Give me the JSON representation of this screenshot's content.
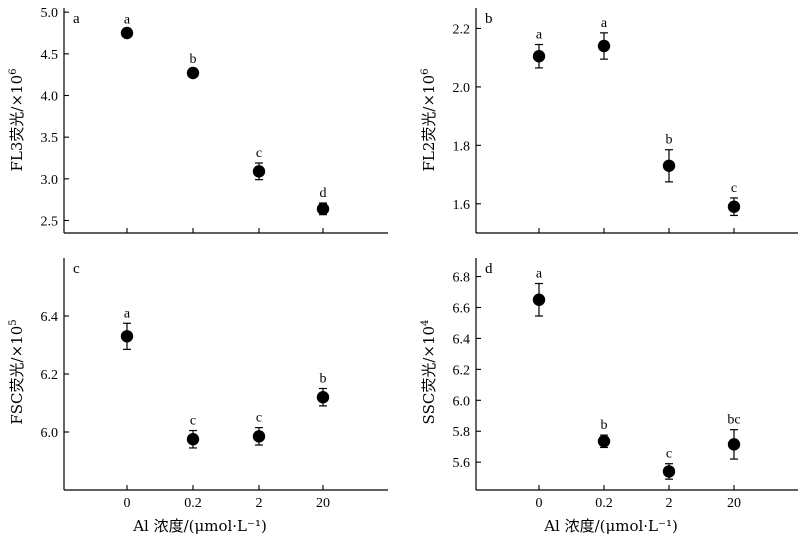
{
  "chart_data": [
    {
      "id": "a",
      "type": "scatter",
      "panel_label": "a",
      "ylabel_base": "FL3荧光/×10",
      "ylabel_exp": "6",
      "categories": [
        "0",
        "0.2",
        "2",
        "20"
      ],
      "values": [
        4.75,
        4.27,
        3.09,
        2.64
      ],
      "errors": [
        0.04,
        0.05,
        0.1,
        0.07
      ],
      "significance": [
        "a",
        "b",
        "c",
        "d"
      ],
      "ylim": [
        2.35,
        5.05
      ],
      "yticks": [
        2.5,
        3.0,
        3.5,
        4.0,
        4.5,
        5.0
      ],
      "ytick_labels": [
        "2.5",
        "3.0",
        "3.5",
        "4.0",
        "4.5",
        "5.0"
      ],
      "show_x_ticklabels": false,
      "xlabel": ""
    },
    {
      "id": "b",
      "type": "scatter",
      "panel_label": "b",
      "ylabel_base": "FL2荧光/×10",
      "ylabel_exp": "6",
      "categories": [
        "0",
        "0.2",
        "2",
        "20"
      ],
      "values": [
        2.105,
        2.14,
        1.73,
        1.59
      ],
      "errors": [
        0.04,
        0.045,
        0.055,
        0.03
      ],
      "significance": [
        "a",
        "a",
        "b",
        "c"
      ],
      "ylim": [
        1.5,
        2.27
      ],
      "yticks": [
        1.6,
        1.8,
        2.0,
        2.2
      ],
      "ytick_labels": [
        "1.6",
        "1.8",
        "2.0",
        "2.2"
      ],
      "show_x_ticklabels": false,
      "xlabel": ""
    },
    {
      "id": "c",
      "type": "scatter",
      "panel_label": "c",
      "ylabel_base": "FSC荧光/×10",
      "ylabel_exp": "5",
      "categories": [
        "0",
        "0.2",
        "2",
        "20"
      ],
      "values": [
        6.33,
        5.975,
        5.985,
        6.12
      ],
      "errors": [
        0.045,
        0.03,
        0.03,
        0.03
      ],
      "significance": [
        "a",
        "c",
        "c",
        "b"
      ],
      "ylim": [
        5.8,
        6.6
      ],
      "yticks": [
        6.0,
        6.2,
        6.4
      ],
      "ytick_labels": [
        "6.0",
        "6.2",
        "6.4"
      ],
      "show_x_ticklabels": true,
      "xlabel": "Al 浓度/(μmol·L⁻¹)"
    },
    {
      "id": "d",
      "type": "scatter",
      "panel_label": "d",
      "ylabel_base": "SSC荧光/×10",
      "ylabel_exp": "4",
      "categories": [
        "0",
        "0.2",
        "2",
        "20"
      ],
      "values": [
        6.65,
        5.735,
        5.54,
        5.715
      ],
      "errors": [
        0.105,
        0.04,
        0.05,
        0.095
      ],
      "significance": [
        "a",
        "b",
        "c",
        "bc"
      ],
      "ylim": [
        5.42,
        6.92
      ],
      "yticks": [
        5.6,
        5.8,
        6.0,
        6.2,
        6.4,
        6.6,
        6.8
      ],
      "ytick_labels": [
        "5.6",
        "5.8",
        "6.0",
        "6.2",
        "6.4",
        "6.6",
        "6.8"
      ],
      "show_x_ticklabels": true,
      "xlabel": "Al 浓度/(μmol·L⁻¹)"
    }
  ]
}
